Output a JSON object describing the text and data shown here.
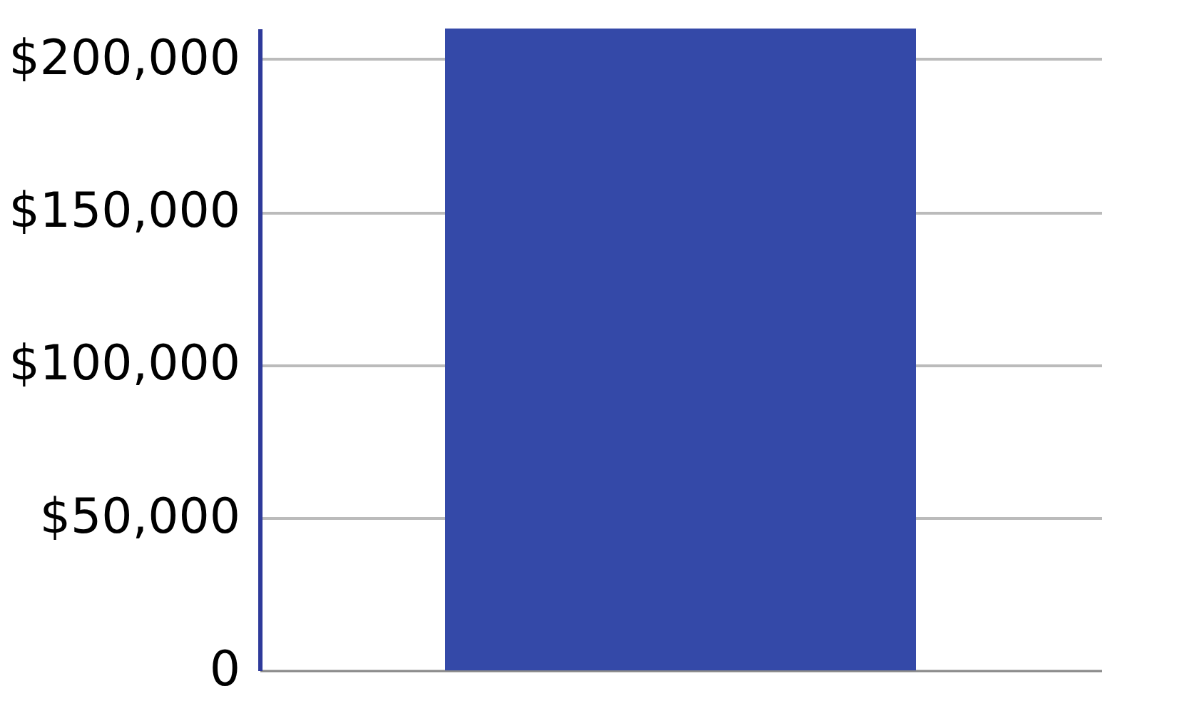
{
  "chart_data": {
    "type": "bar",
    "categories": [
      null
    ],
    "values": [
      210000
    ],
    "color": "#3449a8",
    "ylim": [
      0,
      210000
    ],
    "yticks": [
      0,
      {
        "value": 50000,
        "label": "$50,000"
      },
      {
        "value": 100000,
        "label": "$100,000"
      },
      {
        "value": 150000,
        "label": "$150,000"
      },
      {
        "value": 200000,
        "label": "$200,000"
      }
    ],
    "grid": "y",
    "tick_labels": "y"
  }
}
